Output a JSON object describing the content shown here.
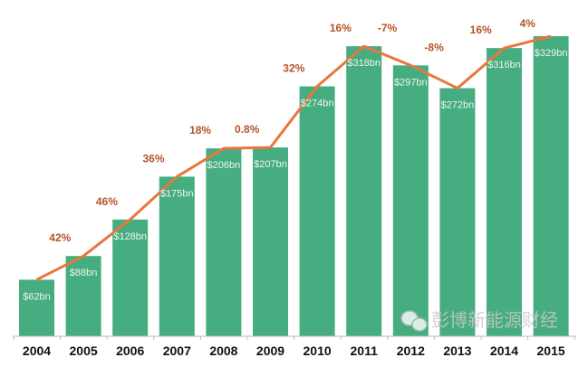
{
  "chart_data": {
    "type": "bar",
    "title": "",
    "xlabel": "",
    "ylabel": "",
    "categories": [
      "2004",
      "2005",
      "2006",
      "2007",
      "2008",
      "2009",
      "2010",
      "2011",
      "2012",
      "2013",
      "2014",
      "2015"
    ],
    "values": [
      62,
      88,
      128,
      175,
      206,
      207,
      274,
      318,
      297,
      272,
      316,
      329
    ],
    "value_labels": [
      "$62bn",
      "$88bn",
      "$128bn",
      "$175bn",
      "$206bn",
      "$207bn",
      "$274bn",
      "$318bn",
      "$297bn",
      "$272bn",
      "$316bn",
      "$329bn"
    ],
    "growth_labels": [
      "",
      "42%",
      "46%",
      "36%",
      "18%",
      "0.8%",
      "32%",
      "16%",
      "-7%",
      "-8%",
      "16%",
      "4%"
    ],
    "ylim": [
      0,
      340
    ],
    "grid": false,
    "bar_color": "#45ad7f",
    "line_color": "#e8773c",
    "label_color": "#b5532a"
  },
  "watermark": {
    "text": "彭博新能源财经",
    "icon": "wechat-icon"
  }
}
